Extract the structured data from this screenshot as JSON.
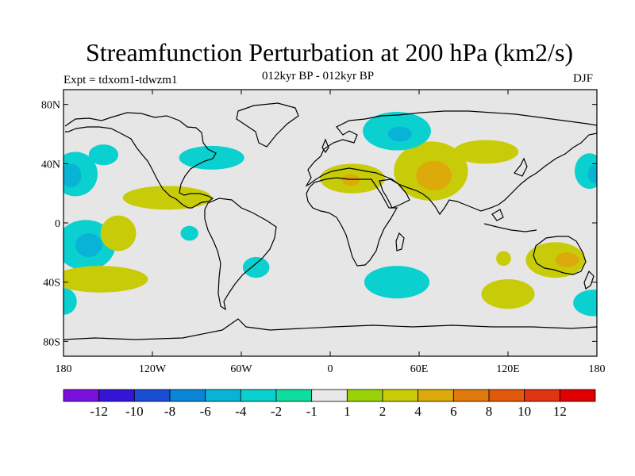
{
  "chart_data": {
    "type": "contour-map",
    "title": "Streamfunction Perturbation at 200 hPa (km2/s)",
    "subtitle": "012kyr BP - 012kyr BP",
    "left_label": "Expt = tdxom1-tdwzm1",
    "right_label": "DJF",
    "lon_range": [
      -180,
      180
    ],
    "lat_range": [
      -90,
      90
    ],
    "x_ticks": [
      {
        "value": -180,
        "label": "180"
      },
      {
        "value": -120,
        "label": "120W"
      },
      {
        "value": -60,
        "label": "60W"
      },
      {
        "value": 0,
        "label": "0"
      },
      {
        "value": 60,
        "label": "60E"
      },
      {
        "value": 120,
        "label": "120E"
      },
      {
        "value": 180,
        "label": "180"
      }
    ],
    "y_ticks": [
      {
        "value": 80,
        "label": "80N"
      },
      {
        "value": 40,
        "label": "40N"
      },
      {
        "value": 0,
        "label": "0"
      },
      {
        "value": -40,
        "label": "40S"
      },
      {
        "value": -80,
        "label": "80S"
      }
    ],
    "colorbar": {
      "colors": [
        "#7a10dc",
        "#3415d8",
        "#1a4ed2",
        "#0a86d6",
        "#08b3d6",
        "#0ad0d0",
        "#10dca0",
        "#e8e8e8",
        "#9ad20a",
        "#c8cc08",
        "#dcaa0a",
        "#e07a0c",
        "#e2580c",
        "#e03412",
        "#e00000"
      ],
      "labels": [
        "-12",
        "-10",
        "-8",
        "-6",
        "-4",
        "-2",
        "-1",
        "1",
        "2",
        "4",
        "6",
        "8",
        "10",
        "12"
      ]
    },
    "anomalies": [
      {
        "name": "north-pacific-negative",
        "lon": -153,
        "lat": 46,
        "rlon": 10,
        "rlat": 7,
        "level": "-2"
      },
      {
        "name": "atlantic-negative",
        "lon": -80,
        "lat": 44,
        "rlon": 22,
        "rlat": 8,
        "level": "-2"
      },
      {
        "name": "west-russia-negative",
        "lon": 45,
        "lat": 62,
        "rlon": 23,
        "rlat": 13,
        "level": "-2"
      },
      {
        "name": "west-russia-core",
        "lon": 47,
        "lat": 60,
        "rlon": 8,
        "rlat": 5,
        "level": "-4"
      },
      {
        "name": "dateline-north-negative",
        "lon": -172,
        "lat": 33,
        "rlon": 15,
        "rlat": 15,
        "level": "-2"
      },
      {
        "name": "dateline-north-core",
        "lon": -175,
        "lat": 32,
        "rlon": 7,
        "rlat": 8,
        "level": "-4"
      },
      {
        "name": "dateline-south-negative",
        "lon": -165,
        "lat": -15,
        "rlon": 20,
        "rlat": 17,
        "level": "-2"
      },
      {
        "name": "dateline-south-core",
        "lon": -163,
        "lat": -15,
        "rlon": 9,
        "rlat": 8,
        "level": "-4"
      },
      {
        "name": "southeast-pacific-negative",
        "lon": -95,
        "lat": -7,
        "rlon": 6,
        "rlat": 5,
        "level": "-2"
      },
      {
        "name": "south-atlantic-negative",
        "lon": -50,
        "lat": -30,
        "rlon": 9,
        "rlat": 7,
        "level": "-2"
      },
      {
        "name": "indian-ocean-negative",
        "lon": 45,
        "lat": -40,
        "rlon": 22,
        "rlat": 11,
        "level": "-2"
      },
      {
        "name": "southern-ocean-negative",
        "lon": -180,
        "lat": -53,
        "rlon": 9,
        "rlat": 9,
        "level": "-2"
      },
      {
        "name": "dateline-east-negative",
        "lon": 178,
        "lat": -54,
        "rlon": 14,
        "rlat": 9,
        "level": "-2"
      },
      {
        "name": "east-asia-negative",
        "lon": 175,
        "lat": 35,
        "rlon": 10,
        "rlat": 12,
        "level": "-2"
      },
      {
        "name": "east-asia-core",
        "lon": 178,
        "lat": 33,
        "rlon": 4,
        "rlat": 6,
        "level": "-4"
      },
      {
        "name": "mexico-positive",
        "lon": -110,
        "lat": 17,
        "rlon": 30,
        "rlat": 8,
        "level": "2"
      },
      {
        "name": "pacific-positive",
        "lon": -143,
        "lat": -7,
        "rlon": 12,
        "rlat": 12,
        "level": "2"
      },
      {
        "name": "south-pacific-positive",
        "lon": -155,
        "lat": -38,
        "rlon": 32,
        "rlat": 9,
        "level": "2"
      },
      {
        "name": "mediterranean-positive",
        "lon": 15,
        "lat": 30,
        "rlon": 22,
        "rlat": 10,
        "level": "2"
      },
      {
        "name": "mediterranean-core",
        "lon": 14,
        "lat": 29,
        "rlon": 6,
        "rlat": 4,
        "level": "4"
      },
      {
        "name": "asia-positive",
        "lon": 68,
        "lat": 35,
        "rlon": 25,
        "rlat": 20,
        "level": "2"
      },
      {
        "name": "asia-core",
        "lon": 70,
        "lat": 32,
        "rlon": 12,
        "rlat": 10,
        "level": "4"
      },
      {
        "name": "mongolia-positive",
        "lon": 105,
        "lat": 48,
        "rlon": 22,
        "rlat": 8,
        "level": "2"
      },
      {
        "name": "australia-positive",
        "lon": 152,
        "lat": -25,
        "rlon": 20,
        "rlat": 12,
        "level": "2"
      },
      {
        "name": "australia-core",
        "lon": 160,
        "lat": -25,
        "rlon": 8,
        "rlat": 5,
        "level": "4"
      },
      {
        "name": "southern-indian-positive",
        "lon": 120,
        "lat": -48,
        "rlon": 18,
        "rlat": 10,
        "level": "2"
      },
      {
        "name": "indian-small-positive",
        "lon": 117,
        "lat": -24,
        "rlon": 5,
        "rlat": 5,
        "level": "2"
      }
    ]
  }
}
